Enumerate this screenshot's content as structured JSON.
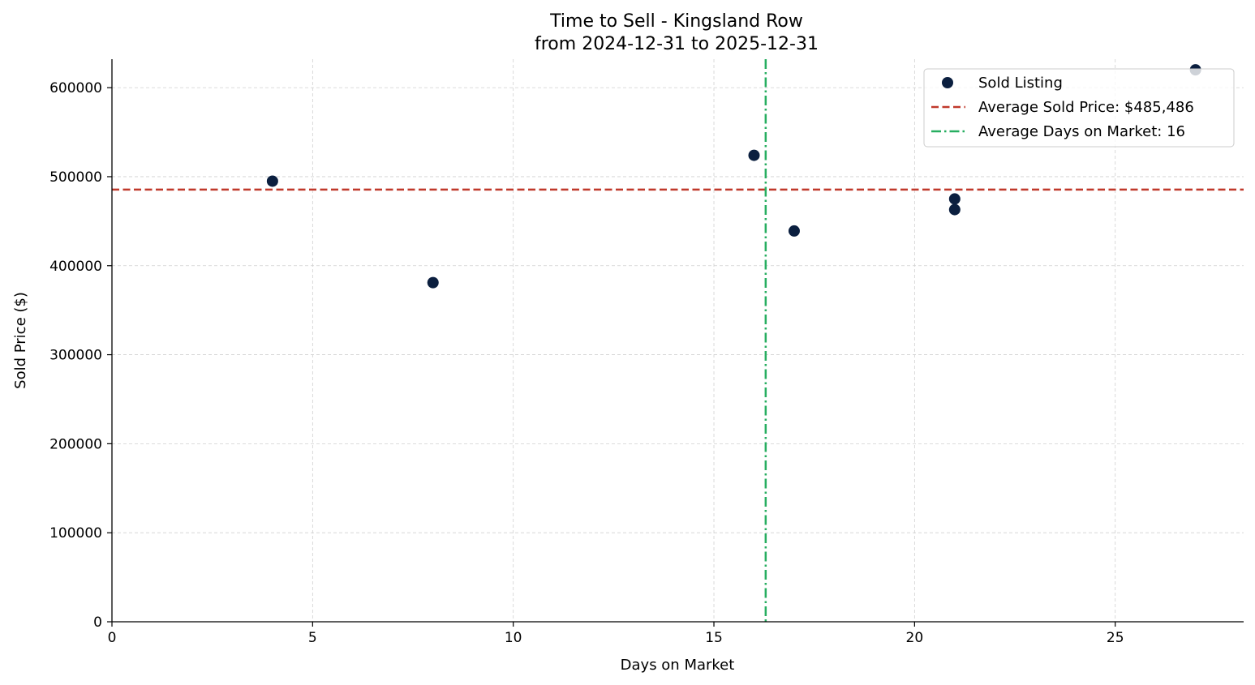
{
  "chart_data": {
    "type": "scatter",
    "title": "Time to Sell - Kingsland Row",
    "subtitle": "from 2024-12-31 to 2025-12-31",
    "xlabel": "Days on Market",
    "ylabel": "Sold Price ($)",
    "xlim": [
      0,
      28.2
    ],
    "ylim": [
      0,
      632000
    ],
    "x_ticks": [
      0,
      5,
      10,
      15,
      20,
      25
    ],
    "y_ticks": [
      0,
      100000,
      200000,
      300000,
      400000,
      500000,
      600000
    ],
    "grid": true,
    "legend_position": "top-right",
    "series": [
      {
        "name": "Sold Listing",
        "color": "#0b1f3f",
        "points": [
          {
            "x": 4,
            "y": 495000
          },
          {
            "x": 8,
            "y": 381000
          },
          {
            "x": 16,
            "y": 524000
          },
          {
            "x": 17,
            "y": 439000
          },
          {
            "x": 21,
            "y": 475000
          },
          {
            "x": 21,
            "y": 463000
          },
          {
            "x": 27,
            "y": 620000
          }
        ]
      }
    ],
    "reference_lines": [
      {
        "name": "Average Sold Price: $485,486",
        "orientation": "horizontal",
        "value": 485486,
        "style": "dashed",
        "color": "#c0392b"
      },
      {
        "name": "Average Days on Market: 16",
        "orientation": "vertical",
        "value": 16.29,
        "style": "dashdot",
        "color": "#27ae60"
      }
    ],
    "legend": [
      {
        "label": "Sold Listing",
        "kind": "marker",
        "color": "#0b1f3f"
      },
      {
        "label": "Average Sold Price: $485,486",
        "kind": "dashed",
        "color": "#c0392b"
      },
      {
        "label": "Average Days on Market: 16",
        "kind": "dashdot",
        "color": "#27ae60"
      }
    ]
  }
}
